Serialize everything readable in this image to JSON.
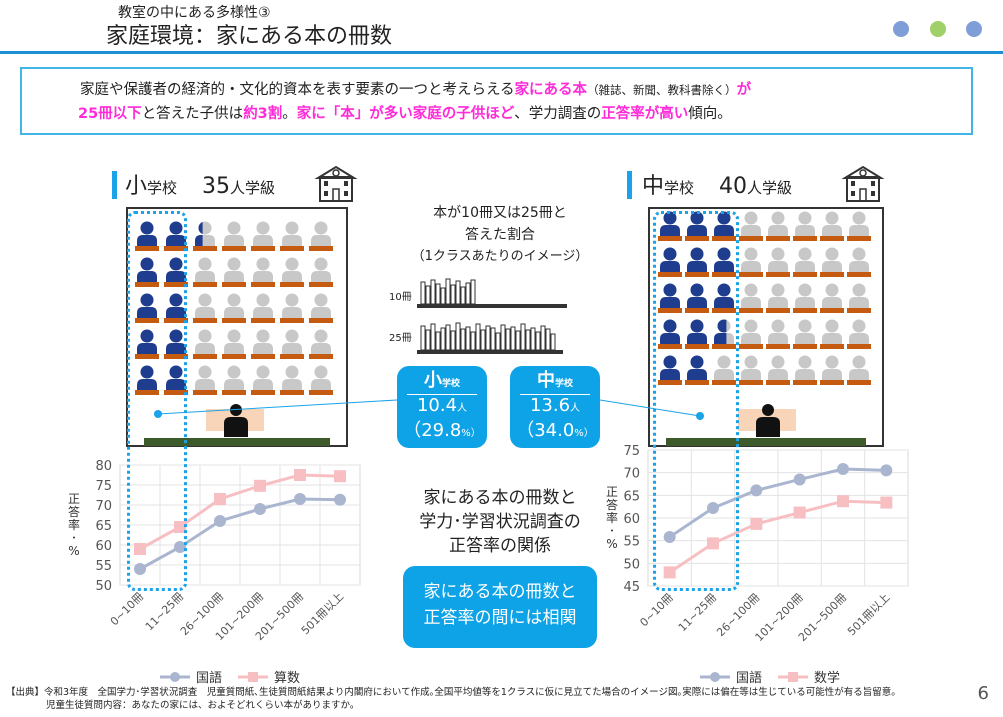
{
  "header": {
    "subtitle": "教室の中にある多様性③",
    "title": "家庭環境：家にある本の冊数",
    "dot_colors": [
      "#7f9ed8",
      "#9fd06a",
      "#7f9ed8"
    ]
  },
  "summary": {
    "t1": "家庭や保護者の経済的・文化的資本を表す要素の一つと考えらえる",
    "t2": "家にある本",
    "t3": "（雑誌、新聞、教科書除く）",
    "t4": "が",
    "t5": "25冊以下",
    "t6": "と答えた子供は",
    "t7": "約3割",
    "t8": "。",
    "t9": "家に「本」が多い家庭の子供ほど",
    "t10": "、学力調査の",
    "t11": "正答率が高い",
    "t12": "傾向。"
  },
  "elementary": {
    "level": "小",
    "level_suffix": "学校",
    "class_size": "35",
    "class_suffix": "人学級",
    "dark_count": 10.4
  },
  "junior": {
    "level": "中",
    "level_suffix": "学校",
    "class_size": "40",
    "class_suffix": "人学級",
    "dark_count": 13.6
  },
  "center": {
    "desc1": "本が10冊又は25冊と",
    "desc2": "答えた割合",
    "desc3": "（1クラスあたりのイメージ）",
    "label_10": "10冊",
    "label_25": "25冊",
    "relation1": "家にある本の冊数と",
    "relation2": "学力･学習状況調査の",
    "relation3": "正答率の関係",
    "conclusion1": "家にある本の冊数と",
    "conclusion2": "正答率の間には相関"
  },
  "badges": {
    "elem": {
      "lvl": "小",
      "lvl_small": "学校",
      "num": "10.4",
      "unit": "人",
      "pct": "（29.8",
      "pct_unit": "%）"
    },
    "jr": {
      "lvl": "中",
      "lvl_small": "学校",
      "num": "13.6",
      "unit": "人",
      "pct": "（34.0",
      "pct_unit": "%）"
    }
  },
  "chart_data": [
    {
      "type": "line",
      "categories": [
        "0~10冊",
        "11~25冊",
        "26~100冊",
        "101~200冊",
        "201~500冊",
        "501冊以上"
      ],
      "series": [
        {
          "name": "国語",
          "values": [
            54,
            59.5,
            66,
            69,
            71.5,
            71.3
          ],
          "color": "#aab6d0"
        },
        {
          "name": "算数",
          "values": [
            59,
            64.5,
            71.5,
            74.8,
            77.5,
            77.2
          ],
          "color": "#f7bfc2"
        }
      ],
      "ylabel": "正答率･%",
      "ylim": [
        50,
        80
      ],
      "yticks": [
        50,
        55,
        60,
        65,
        70,
        75,
        80
      ],
      "legend": "bottom"
    },
    {
      "type": "line",
      "categories": [
        "0~10冊",
        "11~25冊",
        "26~100冊",
        "101~200冊",
        "201~500冊",
        "501冊以上"
      ],
      "series": [
        {
          "name": "国語",
          "values": [
            55.8,
            62.2,
            66.1,
            68.5,
            70.8,
            70.5
          ],
          "color": "#aab6d0"
        },
        {
          "name": "数学",
          "values": [
            48,
            54.4,
            58.7,
            61.2,
            63.7,
            63.4
          ],
          "color": "#f7bfc2"
        }
      ],
      "ylabel": "正答率･%",
      "ylim": [
        45,
        75
      ],
      "yticks": [
        45,
        50,
        55,
        60,
        65,
        70,
        75
      ],
      "legend": "bottom"
    }
  ],
  "footer": {
    "line1": "【出典】令和3年度　全国学力･学習状況調査　児童質問紙､生徒質問紙結果より内閣府において作成｡全国平均値等を1クラスに仮に見立てた場合のイメージ図｡実際には偏在等は生じている可能性が有る旨留意。",
    "line2": "児童生徒質問内容：あなたの家には、およそどれくらい本がありますか。",
    "page": "6"
  }
}
